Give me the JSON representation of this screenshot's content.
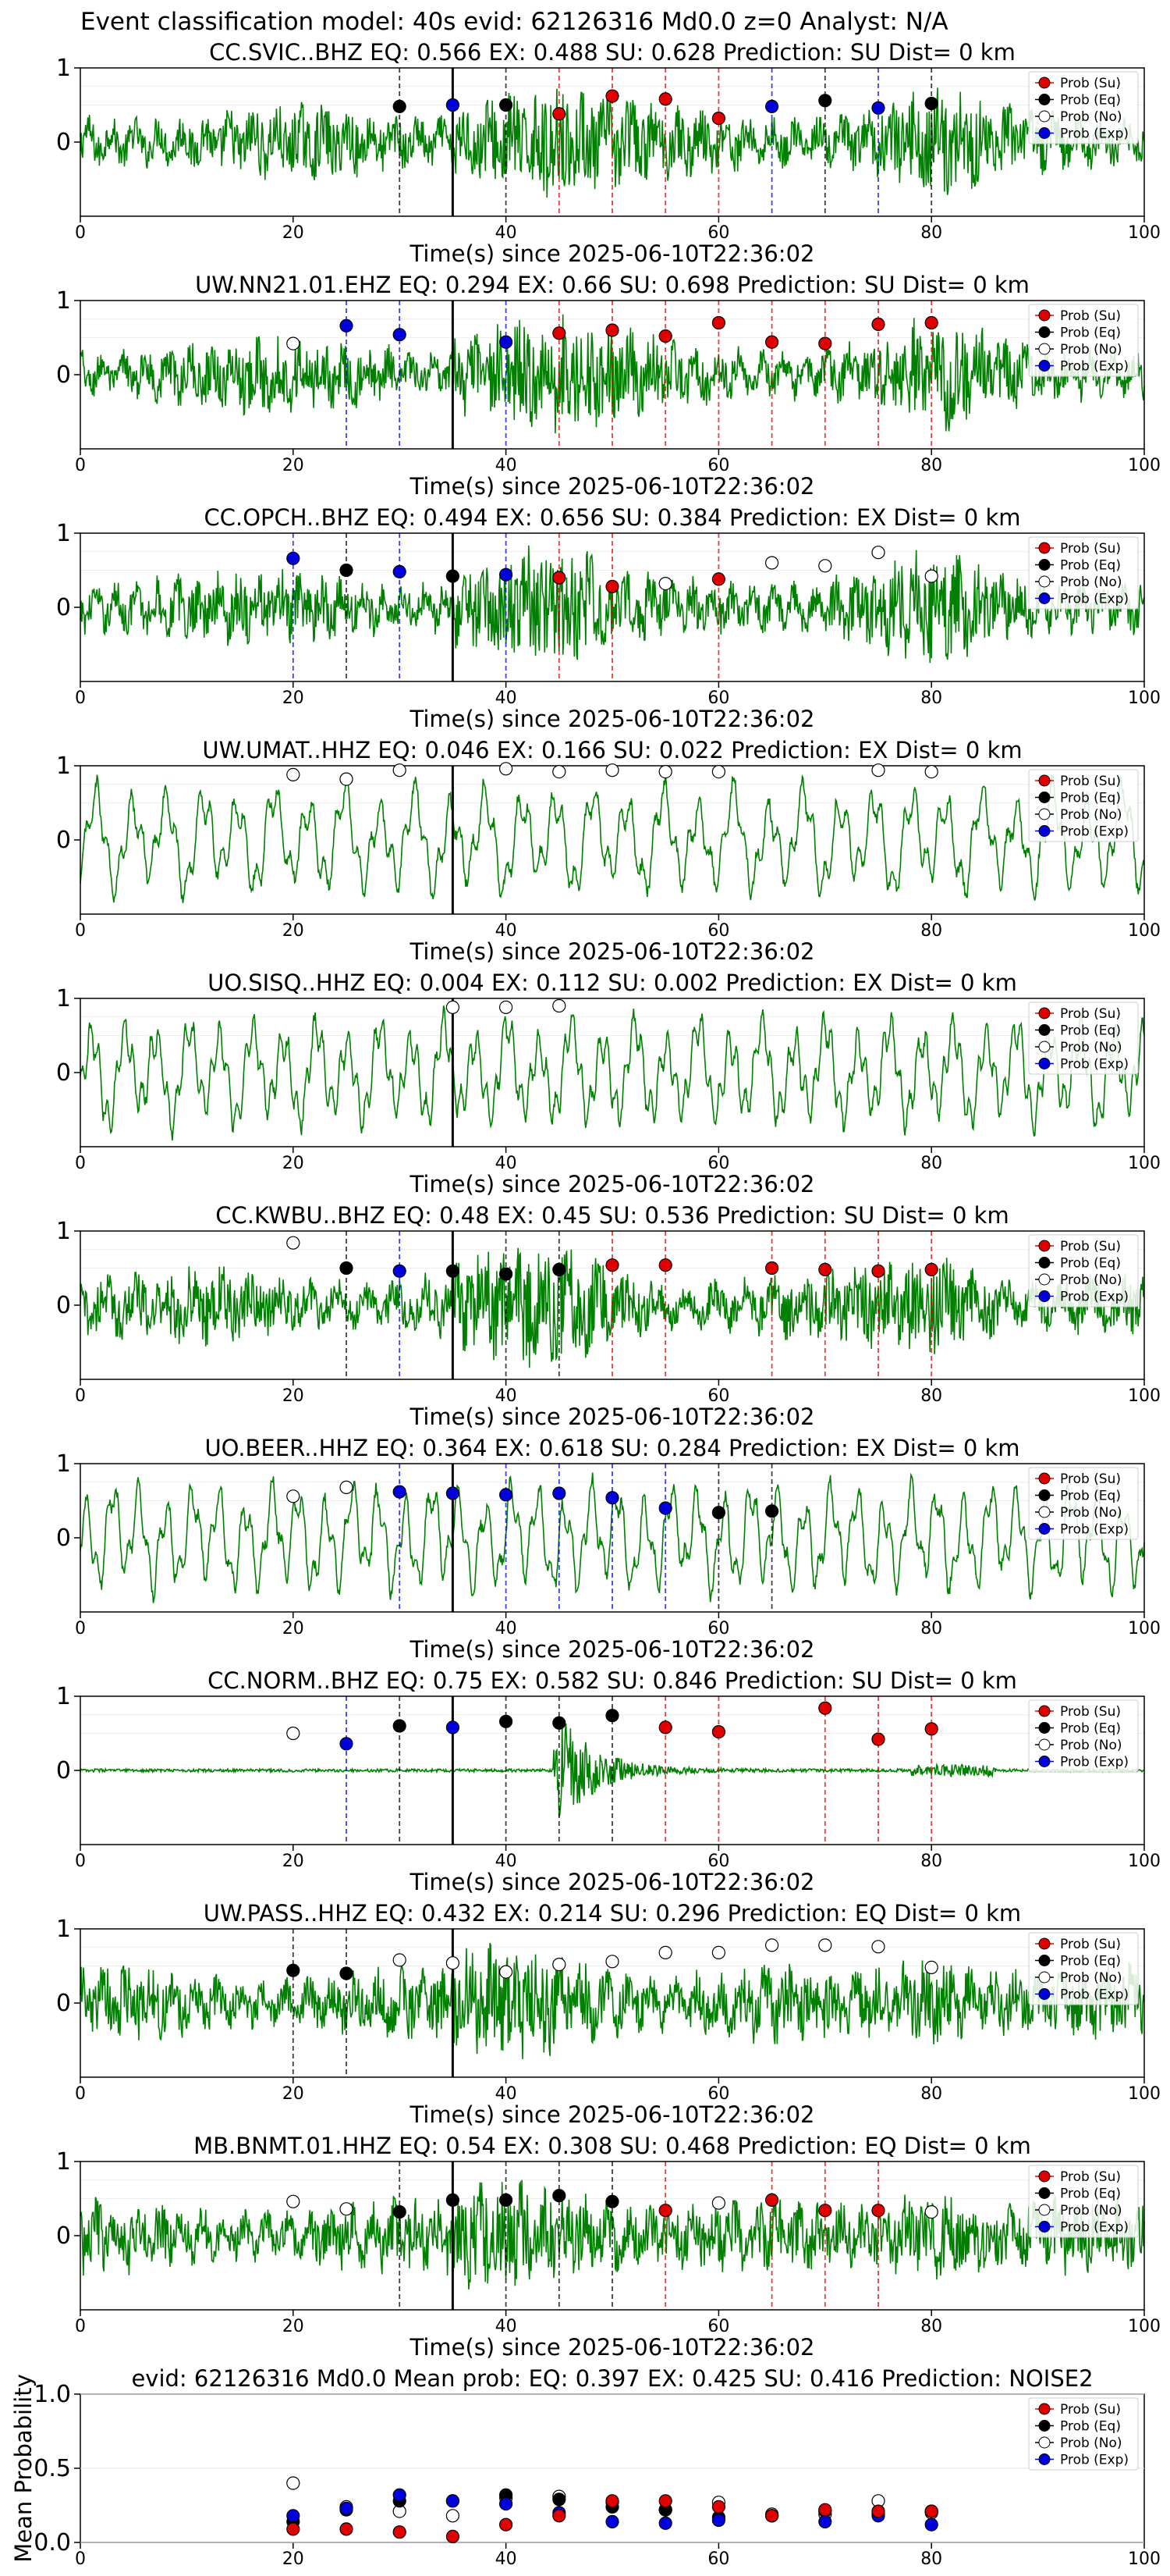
{
  "suptitle": "Event classification model: 40s evid: 62126316 Md0.0 z=0 Analyst: N/A",
  "colors": {
    "su": "#e00000",
    "eq": "#000000",
    "no": "#ffffff",
    "exp": "#0000dd",
    "trace": "#008000"
  },
  "legend": {
    "su": "Prob (Su)",
    "eq": "Prob (Eq)",
    "no": "Prob (No)",
    "exp": "Prob (Exp)"
  },
  "chart_data": [
    {
      "type": "line",
      "title": "CC.SVIC..BHZ   EQ: 0.566  EX: 0.488  SU: 0.628   Prediction: SU    Dist= 0 km",
      "xlabel": "Time(s) since 2025-06-10T22:36:02",
      "ylabel": "",
      "xlim": [
        0,
        100
      ],
      "ylim": [
        -1,
        1
      ],
      "xticks": [
        0,
        20,
        40,
        60,
        80,
        100
      ],
      "yticks": [
        1,
        0
      ],
      "pick_time": 35,
      "amplitude_style": "noisy",
      "points": [
        {
          "x": 30,
          "y": 0.48,
          "class": "eq"
        },
        {
          "x": 35,
          "y": 0.5,
          "class": "exp"
        },
        {
          "x": 40,
          "y": 0.5,
          "class": "eq"
        },
        {
          "x": 45,
          "y": 0.38,
          "class": "su"
        },
        {
          "x": 50,
          "y": 0.62,
          "class": "su"
        },
        {
          "x": 55,
          "y": 0.58,
          "class": "su"
        },
        {
          "x": 60,
          "y": 0.32,
          "class": "su"
        },
        {
          "x": 65,
          "y": 0.48,
          "class": "exp"
        },
        {
          "x": 70,
          "y": 0.56,
          "class": "eq"
        },
        {
          "x": 75,
          "y": 0.46,
          "class": "exp"
        },
        {
          "x": 80,
          "y": 0.52,
          "class": "eq"
        }
      ]
    },
    {
      "type": "line",
      "title": "UW.NN21.01.EHZ   EQ: 0.294  EX: 0.66  SU: 0.698   Prediction: SU    Dist= 0 km",
      "xlabel": "Time(s) since 2025-06-10T22:36:02",
      "ylabel": "",
      "xlim": [
        0,
        100
      ],
      "ylim": [
        -1,
        1
      ],
      "xticks": [
        0,
        20,
        40,
        60,
        80,
        100
      ],
      "yticks": [
        1,
        0
      ],
      "pick_time": 35,
      "amplitude_style": "noisy",
      "points": [
        {
          "x": 20,
          "y": 0.42,
          "class": "no"
        },
        {
          "x": 25,
          "y": 0.66,
          "class": "exp"
        },
        {
          "x": 30,
          "y": 0.54,
          "class": "exp"
        },
        {
          "x": 40,
          "y": 0.44,
          "class": "exp"
        },
        {
          "x": 45,
          "y": 0.56,
          "class": "su"
        },
        {
          "x": 50,
          "y": 0.6,
          "class": "su"
        },
        {
          "x": 55,
          "y": 0.52,
          "class": "su"
        },
        {
          "x": 60,
          "y": 0.7,
          "class": "su"
        },
        {
          "x": 65,
          "y": 0.44,
          "class": "su"
        },
        {
          "x": 70,
          "y": 0.42,
          "class": "su"
        },
        {
          "x": 75,
          "y": 0.68,
          "class": "su"
        },
        {
          "x": 80,
          "y": 0.7,
          "class": "su"
        }
      ]
    },
    {
      "type": "line",
      "title": "CC.OPCH..BHZ   EQ: 0.494  EX: 0.656  SU: 0.384   Prediction: EX    Dist= 0 km",
      "xlabel": "Time(s) since 2025-06-10T22:36:02",
      "ylabel": "",
      "xlim": [
        0,
        100
      ],
      "ylim": [
        -1,
        1
      ],
      "xticks": [
        0,
        20,
        40,
        60,
        80,
        100
      ],
      "yticks": [
        1,
        0
      ],
      "pick_time": 35,
      "amplitude_style": "noisy",
      "points": [
        {
          "x": 20,
          "y": 0.66,
          "class": "exp"
        },
        {
          "x": 25,
          "y": 0.5,
          "class": "eq"
        },
        {
          "x": 30,
          "y": 0.48,
          "class": "exp"
        },
        {
          "x": 35,
          "y": 0.42,
          "class": "eq"
        },
        {
          "x": 40,
          "y": 0.44,
          "class": "exp"
        },
        {
          "x": 45,
          "y": 0.4,
          "class": "su"
        },
        {
          "x": 50,
          "y": 0.28,
          "class": "su"
        },
        {
          "x": 55,
          "y": 0.32,
          "class": "no"
        },
        {
          "x": 60,
          "y": 0.38,
          "class": "su"
        },
        {
          "x": 65,
          "y": 0.6,
          "class": "no"
        },
        {
          "x": 70,
          "y": 0.56,
          "class": "no"
        },
        {
          "x": 75,
          "y": 0.74,
          "class": "no"
        },
        {
          "x": 80,
          "y": 0.42,
          "class": "no"
        }
      ]
    },
    {
      "type": "line",
      "title": "UW.UMAT..HHZ   EQ: 0.046  EX: 0.166  SU: 0.022   Prediction: EX    Dist= 0 km",
      "xlabel": "Time(s) since 2025-06-10T22:36:02",
      "ylabel": "",
      "xlim": [
        0,
        100
      ],
      "ylim": [
        -1,
        1
      ],
      "xticks": [
        0,
        20,
        40,
        60,
        80,
        100
      ],
      "yticks": [
        1,
        0
      ],
      "pick_time": 35,
      "amplitude_style": "wavy",
      "points": [
        {
          "x": 20,
          "y": 0.88,
          "class": "no"
        },
        {
          "x": 25,
          "y": 0.82,
          "class": "no"
        },
        {
          "x": 30,
          "y": 0.94,
          "class": "no"
        },
        {
          "x": 40,
          "y": 0.96,
          "class": "no"
        },
        {
          "x": 45,
          "y": 0.92,
          "class": "no"
        },
        {
          "x": 50,
          "y": 0.94,
          "class": "no"
        },
        {
          "x": 55,
          "y": 0.92,
          "class": "no"
        },
        {
          "x": 60,
          "y": 0.92,
          "class": "no"
        },
        {
          "x": 75,
          "y": 0.94,
          "class": "no"
        },
        {
          "x": 80,
          "y": 0.92,
          "class": "no"
        }
      ]
    },
    {
      "type": "line",
      "title": "UO.SISQ..HHZ   EQ: 0.004  EX: 0.112  SU: 0.002   Prediction: EX    Dist= 0 km",
      "xlabel": "Time(s) since 2025-06-10T22:36:02",
      "ylabel": "",
      "xlim": [
        0,
        100
      ],
      "ylim": [
        -1,
        1
      ],
      "xticks": [
        0,
        20,
        40,
        60,
        80,
        100
      ],
      "yticks": [
        1,
        0
      ],
      "pick_time": 35,
      "amplitude_style": "wavy",
      "points": [
        {
          "x": 35,
          "y": 0.88,
          "class": "no"
        },
        {
          "x": 40,
          "y": 0.88,
          "class": "no"
        },
        {
          "x": 45,
          "y": 0.9,
          "class": "no"
        }
      ]
    },
    {
      "type": "line",
      "title": "CC.KWBU..BHZ   EQ: 0.48  EX: 0.45  SU: 0.536   Prediction: SU    Dist= 0 km",
      "xlabel": "Time(s) since 2025-06-10T22:36:02",
      "ylabel": "",
      "xlim": [
        0,
        100
      ],
      "ylim": [
        -1,
        1
      ],
      "xticks": [
        0,
        20,
        40,
        60,
        80,
        100
      ],
      "yticks": [
        1,
        0
      ],
      "pick_time": 35,
      "amplitude_style": "noisy",
      "points": [
        {
          "x": 20,
          "y": 0.84,
          "class": "no"
        },
        {
          "x": 25,
          "y": 0.5,
          "class": "eq"
        },
        {
          "x": 30,
          "y": 0.46,
          "class": "exp"
        },
        {
          "x": 35,
          "y": 0.46,
          "class": "eq"
        },
        {
          "x": 40,
          "y": 0.42,
          "class": "eq"
        },
        {
          "x": 45,
          "y": 0.48,
          "class": "eq"
        },
        {
          "x": 50,
          "y": 0.54,
          "class": "su"
        },
        {
          "x": 55,
          "y": 0.54,
          "class": "su"
        },
        {
          "x": 65,
          "y": 0.5,
          "class": "su"
        },
        {
          "x": 70,
          "y": 0.48,
          "class": "su"
        },
        {
          "x": 75,
          "y": 0.46,
          "class": "su"
        },
        {
          "x": 80,
          "y": 0.48,
          "class": "su"
        }
      ]
    },
    {
      "type": "line",
      "title": "UO.BEER..HHZ   EQ: 0.364  EX: 0.618  SU: 0.284   Prediction: EX    Dist= 0 km",
      "xlabel": "Time(s) since 2025-06-10T22:36:02",
      "ylabel": "",
      "xlim": [
        0,
        100
      ],
      "ylim": [
        -1,
        1
      ],
      "xticks": [
        0,
        20,
        40,
        60,
        80,
        100
      ],
      "yticks": [
        1,
        0
      ],
      "pick_time": 35,
      "amplitude_style": "wavy",
      "points": [
        {
          "x": 20,
          "y": 0.56,
          "class": "no"
        },
        {
          "x": 25,
          "y": 0.68,
          "class": "no"
        },
        {
          "x": 30,
          "y": 0.62,
          "class": "exp"
        },
        {
          "x": 35,
          "y": 0.6,
          "class": "exp"
        },
        {
          "x": 40,
          "y": 0.58,
          "class": "exp"
        },
        {
          "x": 45,
          "y": 0.6,
          "class": "exp"
        },
        {
          "x": 50,
          "y": 0.54,
          "class": "exp"
        },
        {
          "x": 55,
          "y": 0.4,
          "class": "exp"
        },
        {
          "x": 60,
          "y": 0.34,
          "class": "eq"
        },
        {
          "x": 65,
          "y": 0.36,
          "class": "eq"
        }
      ]
    },
    {
      "type": "line",
      "title": "CC.NORM..BHZ   EQ: 0.75  EX: 0.582  SU: 0.846   Prediction: SU    Dist= 0 km",
      "xlabel": "Time(s) since 2025-06-10T22:36:02",
      "ylabel": "",
      "xlim": [
        0,
        100
      ],
      "ylim": [
        -1,
        1
      ],
      "xticks": [
        0,
        20,
        40,
        60,
        80,
        100
      ],
      "yticks": [
        1,
        0
      ],
      "pick_time": 35,
      "amplitude_style": "burst",
      "points": [
        {
          "x": 20,
          "y": 0.5,
          "class": "no"
        },
        {
          "x": 25,
          "y": 0.36,
          "class": "exp"
        },
        {
          "x": 30,
          "y": 0.6,
          "class": "eq"
        },
        {
          "x": 35,
          "y": 0.58,
          "class": "exp"
        },
        {
          "x": 40,
          "y": 0.66,
          "class": "eq"
        },
        {
          "x": 45,
          "y": 0.64,
          "class": "eq"
        },
        {
          "x": 50,
          "y": 0.74,
          "class": "eq"
        },
        {
          "x": 55,
          "y": 0.58,
          "class": "su"
        },
        {
          "x": 60,
          "y": 0.52,
          "class": "su"
        },
        {
          "x": 70,
          "y": 0.84,
          "class": "su"
        },
        {
          "x": 75,
          "y": 0.42,
          "class": "su"
        },
        {
          "x": 80,
          "y": 0.56,
          "class": "su"
        }
      ]
    },
    {
      "type": "line",
      "title": "UW.PASS..HHZ   EQ: 0.432  EX: 0.214  SU: 0.296   Prediction: EQ    Dist= 0 km",
      "xlabel": "Time(s) since 2025-06-10T22:36:02",
      "ylabel": "",
      "xlim": [
        0,
        100
      ],
      "ylim": [
        -1,
        1
      ],
      "xticks": [
        0,
        20,
        40,
        60,
        80,
        100
      ],
      "yticks": [
        1,
        0
      ],
      "pick_time": 35,
      "amplitude_style": "noisy",
      "points": [
        {
          "x": 20,
          "y": 0.44,
          "class": "eq"
        },
        {
          "x": 25,
          "y": 0.4,
          "class": "eq"
        },
        {
          "x": 30,
          "y": 0.58,
          "class": "no"
        },
        {
          "x": 35,
          "y": 0.54,
          "class": "no"
        },
        {
          "x": 40,
          "y": 0.42,
          "class": "no"
        },
        {
          "x": 45,
          "y": 0.52,
          "class": "no"
        },
        {
          "x": 50,
          "y": 0.56,
          "class": "no"
        },
        {
          "x": 55,
          "y": 0.68,
          "class": "no"
        },
        {
          "x": 60,
          "y": 0.68,
          "class": "no"
        },
        {
          "x": 65,
          "y": 0.78,
          "class": "no"
        },
        {
          "x": 70,
          "y": 0.78,
          "class": "no"
        },
        {
          "x": 75,
          "y": 0.76,
          "class": "no"
        },
        {
          "x": 80,
          "y": 0.48,
          "class": "no"
        }
      ]
    },
    {
      "type": "line",
      "title": "MB.BNMT.01.HHZ   EQ: 0.54  EX: 0.308  SU: 0.468   Prediction: EQ    Dist= 0 km",
      "xlabel": "Time(s) since 2025-06-10T22:36:02",
      "ylabel": "",
      "xlim": [
        0,
        100
      ],
      "ylim": [
        -1,
        1
      ],
      "xticks": [
        0,
        20,
        40,
        60,
        80,
        100
      ],
      "yticks": [
        1,
        0
      ],
      "pick_time": 35,
      "amplitude_style": "noisy",
      "points": [
        {
          "x": 20,
          "y": 0.46,
          "class": "no"
        },
        {
          "x": 25,
          "y": 0.36,
          "class": "no"
        },
        {
          "x": 30,
          "y": 0.32,
          "class": "eq"
        },
        {
          "x": 35,
          "y": 0.48,
          "class": "eq"
        },
        {
          "x": 40,
          "y": 0.48,
          "class": "eq"
        },
        {
          "x": 45,
          "y": 0.54,
          "class": "eq"
        },
        {
          "x": 50,
          "y": 0.46,
          "class": "eq"
        },
        {
          "x": 55,
          "y": 0.34,
          "class": "su"
        },
        {
          "x": 60,
          "y": 0.44,
          "class": "no"
        },
        {
          "x": 65,
          "y": 0.48,
          "class": "su"
        },
        {
          "x": 70,
          "y": 0.34,
          "class": "su"
        },
        {
          "x": 75,
          "y": 0.34,
          "class": "su"
        },
        {
          "x": 80,
          "y": 0.32,
          "class": "no"
        }
      ]
    },
    {
      "type": "scatter",
      "title": "evid: 62126316  Md0.0   Mean prob:   EQ: 0.397  EX: 0.425  SU: 0.416   Prediction: NOISE2",
      "xlabel": "",
      "ylabel": "Mean Probability",
      "xlim": [
        0,
        100
      ],
      "ylim": [
        0,
        1
      ],
      "xticks": [
        0,
        20,
        40,
        60,
        80,
        100
      ],
      "yticks": [
        0.0,
        0.5,
        1.0
      ],
      "ytick_labels": [
        "0.0",
        "0.5",
        "1.0"
      ],
      "x": [
        20,
        25,
        30,
        35,
        40,
        45,
        50,
        55,
        60,
        65,
        70,
        75,
        80
      ],
      "series": [
        {
          "name": "Prob (No)",
          "class": "no",
          "values": [
            0.4,
            0.24,
            0.21,
            0.18,
            0.3,
            0.31,
            0.27,
            0.22,
            0.27,
            0.19,
            0.19,
            0.28,
            0.2
          ]
        },
        {
          "name": "Prob (Eq)",
          "class": "eq",
          "values": [
            0.14,
            0.22,
            0.28,
            0.28,
            0.32,
            0.29,
            0.24,
            0.22,
            0.17,
            0.18,
            0.21,
            0.19,
            0.21
          ]
        },
        {
          "name": "Prob (Exp)",
          "class": "exp",
          "values": [
            0.18,
            0.23,
            0.32,
            0.28,
            0.26,
            0.2,
            0.14,
            0.13,
            0.15,
            0.18,
            0.14,
            0.18,
            0.12
          ]
        },
        {
          "name": "Prob (Su)",
          "class": "su",
          "values": [
            0.09,
            0.09,
            0.07,
            0.04,
            0.12,
            0.18,
            0.28,
            0.28,
            0.24,
            0.18,
            0.22,
            0.21,
            0.21
          ]
        }
      ]
    }
  ]
}
